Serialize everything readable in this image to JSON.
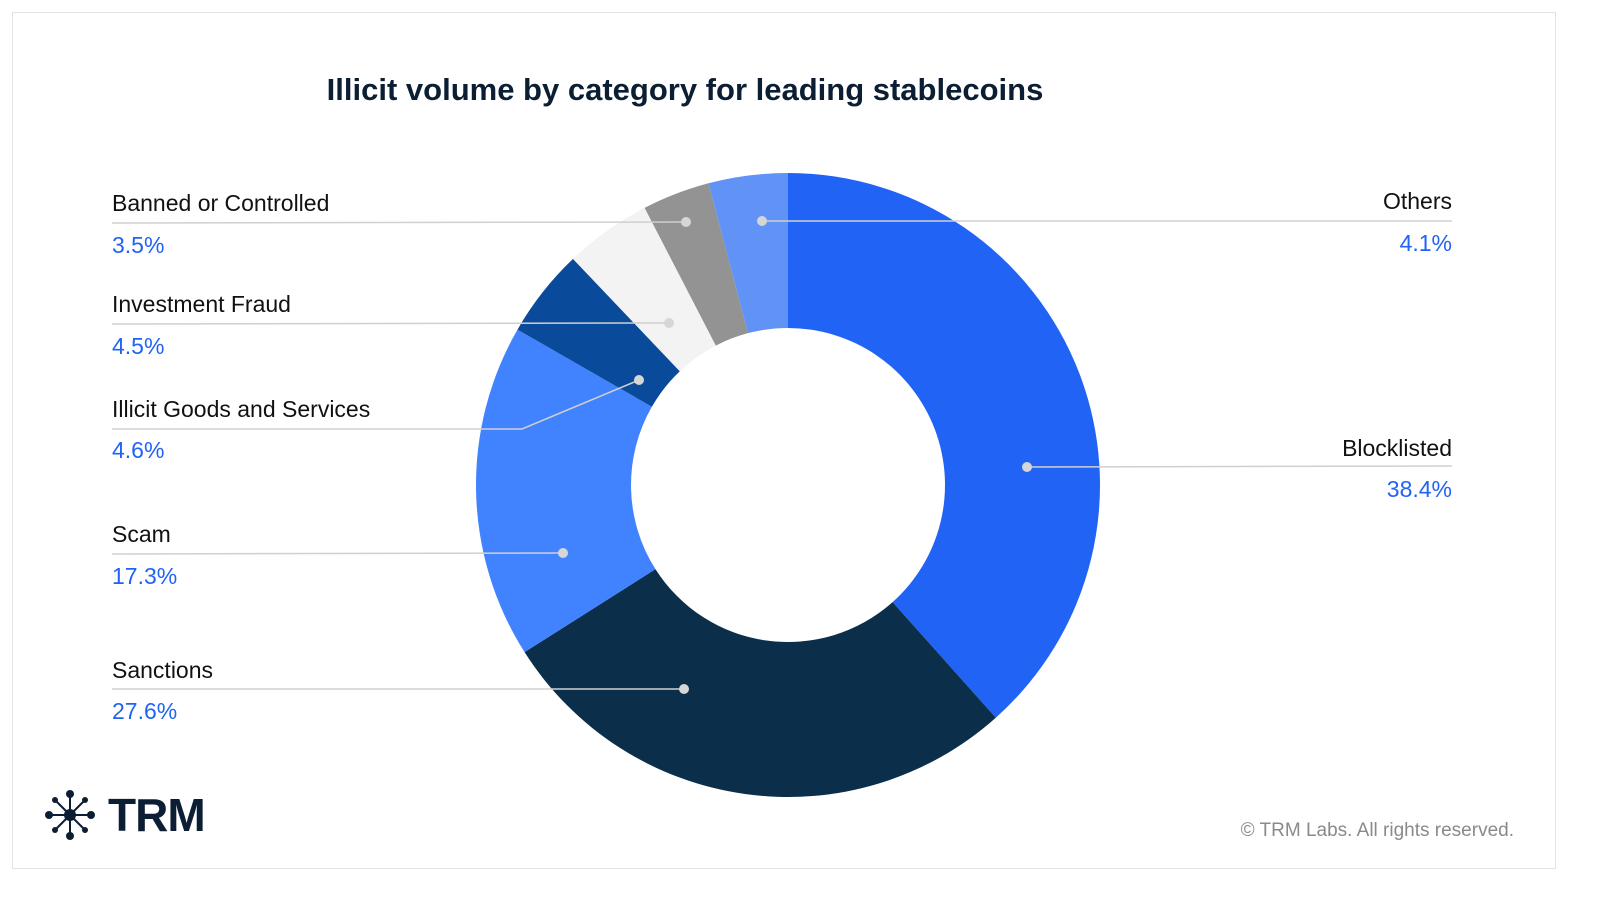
{
  "chart_data": {
    "type": "pie",
    "variant": "donut",
    "title": "Illicit volume by category for leading stablecoins",
    "slices": [
      {
        "label": "Blocklisted",
        "value": 38.4,
        "display": "38.4%",
        "color": "#2163f5"
      },
      {
        "label": "Sanctions",
        "value": 27.6,
        "display": "27.6%",
        "color": "#0b2e4a"
      },
      {
        "label": "Scam",
        "value": 17.3,
        "display": "17.3%",
        "color": "#4183ff"
      },
      {
        "label": "Illicit Goods and Services",
        "value": 4.6,
        "display": "4.6%",
        "color": "#0a4a9b"
      },
      {
        "label": "Investment Fraud",
        "value": 4.5,
        "display": "4.5%",
        "color": "#f3f3f3"
      },
      {
        "label": "Banned or Controlled",
        "value": 3.5,
        "display": "3.5%",
        "color": "#939393"
      },
      {
        "label": "Others",
        "value": 4.1,
        "display": "4.1%",
        "color": "#6093f5"
      }
    ],
    "legend": "callout-labels"
  },
  "brand": {
    "logo_text": "TRM",
    "logo_icon": "network-star-icon",
    "copyright": "© TRM Labs. All rights reserved."
  },
  "colors": {
    "title": "#0b1e33",
    "percent": "#2163f5",
    "leader": "#d0d0d0"
  }
}
